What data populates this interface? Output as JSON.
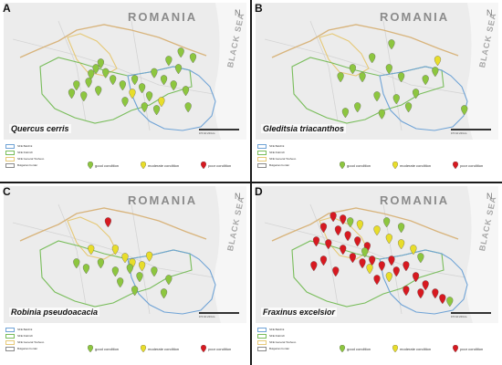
{
  "figure": {
    "country_label": "ROMANIA",
    "sea_label": "BLACK SEA",
    "north_symbol": "N",
    "scale_ticks": "0    5    10        20 km",
    "colors": {
      "map_bg": "#ececec",
      "border_bulgaria": "#b0b0b0",
      "border_romania": "#d8b47c",
      "sfe_balchik": "#6fa3d6",
      "sfe_dobrich": "#79bd5b",
      "sfe_general_toshevo": "#e6c978",
      "good": "#8dc63f",
      "moderate": "#e8dd2a",
      "poor": "#d71920"
    },
    "legend_areas": [
      {
        "label": "SFE Balchik",
        "color": "#6fa3d6"
      },
      {
        "label": "SFE Dobrich",
        "color": "#79bd5b"
      },
      {
        "label": "SFE General Toshevo",
        "color": "#e6c978"
      },
      {
        "label": "Bulgarian border",
        "color": "#8b8b8b"
      }
    ],
    "legend_conditions": [
      {
        "label": "good condition",
        "color": "#8dc63f"
      },
      {
        "label": "moderate condition",
        "color": "#e8dd2a"
      },
      {
        "label": "poor condition",
        "color": "#d71920"
      }
    ],
    "panels": [
      {
        "letter": "A",
        "species": "Quercus cerris",
        "points": [
          {
            "x": 0.38,
            "y": 0.52,
            "c": "good"
          },
          {
            "x": 0.4,
            "y": 0.48,
            "c": "good"
          },
          {
            "x": 0.36,
            "y": 0.56,
            "c": "good"
          },
          {
            "x": 0.42,
            "y": 0.55,
            "c": "good"
          },
          {
            "x": 0.35,
            "y": 0.62,
            "c": "good"
          },
          {
            "x": 0.3,
            "y": 0.64,
            "c": "good"
          },
          {
            "x": 0.28,
            "y": 0.7,
            "c": "good"
          },
          {
            "x": 0.33,
            "y": 0.72,
            "c": "good"
          },
          {
            "x": 0.39,
            "y": 0.68,
            "c": "good"
          },
          {
            "x": 0.45,
            "y": 0.6,
            "c": "good"
          },
          {
            "x": 0.49,
            "y": 0.64,
            "c": "good"
          },
          {
            "x": 0.54,
            "y": 0.6,
            "c": "good"
          },
          {
            "x": 0.57,
            "y": 0.66,
            "c": "good"
          },
          {
            "x": 0.6,
            "y": 0.72,
            "c": "good"
          },
          {
            "x": 0.58,
            "y": 0.8,
            "c": "good"
          },
          {
            "x": 0.63,
            "y": 0.82,
            "c": "good"
          },
          {
            "x": 0.62,
            "y": 0.55,
            "c": "good"
          },
          {
            "x": 0.66,
            "y": 0.6,
            "c": "good"
          },
          {
            "x": 0.7,
            "y": 0.64,
            "c": "good"
          },
          {
            "x": 0.75,
            "y": 0.68,
            "c": "good"
          },
          {
            "x": 0.72,
            "y": 0.52,
            "c": "good"
          },
          {
            "x": 0.68,
            "y": 0.46,
            "c": "good"
          },
          {
            "x": 0.73,
            "y": 0.4,
            "c": "good"
          },
          {
            "x": 0.78,
            "y": 0.44,
            "c": "good"
          },
          {
            "x": 0.76,
            "y": 0.8,
            "c": "good"
          },
          {
            "x": 0.5,
            "y": 0.76,
            "c": "good"
          },
          {
            "x": 0.53,
            "y": 0.7,
            "c": "moderate"
          },
          {
            "x": 0.65,
            "y": 0.76,
            "c": "moderate"
          }
        ]
      },
      {
        "letter": "B",
        "species": "Gleditsia triacanthos",
        "points": [
          {
            "x": 0.56,
            "y": 0.34,
            "c": "good"
          },
          {
            "x": 0.48,
            "y": 0.44,
            "c": "good"
          },
          {
            "x": 0.4,
            "y": 0.52,
            "c": "good"
          },
          {
            "x": 0.35,
            "y": 0.58,
            "c": "good"
          },
          {
            "x": 0.44,
            "y": 0.58,
            "c": "good"
          },
          {
            "x": 0.55,
            "y": 0.52,
            "c": "good"
          },
          {
            "x": 0.6,
            "y": 0.58,
            "c": "good"
          },
          {
            "x": 0.7,
            "y": 0.6,
            "c": "good"
          },
          {
            "x": 0.66,
            "y": 0.7,
            "c": "good"
          },
          {
            "x": 0.58,
            "y": 0.74,
            "c": "good"
          },
          {
            "x": 0.5,
            "y": 0.72,
            "c": "good"
          },
          {
            "x": 0.42,
            "y": 0.8,
            "c": "good"
          },
          {
            "x": 0.37,
            "y": 0.84,
            "c": "good"
          },
          {
            "x": 0.52,
            "y": 0.85,
            "c": "good"
          },
          {
            "x": 0.63,
            "y": 0.8,
            "c": "good"
          },
          {
            "x": 0.74,
            "y": 0.54,
            "c": "good"
          },
          {
            "x": 0.86,
            "y": 0.82,
            "c": "good"
          },
          {
            "x": 0.75,
            "y": 0.46,
            "c": "moderate"
          }
        ]
      },
      {
        "letter": "C",
        "species": "Robinia pseudoacacia",
        "points": [
          {
            "x": 0.43,
            "y": 0.3,
            "c": "poor"
          },
          {
            "x": 0.36,
            "y": 0.5,
            "c": "moderate"
          },
          {
            "x": 0.46,
            "y": 0.5,
            "c": "moderate"
          },
          {
            "x": 0.5,
            "y": 0.56,
            "c": "moderate"
          },
          {
            "x": 0.53,
            "y": 0.6,
            "c": "moderate"
          },
          {
            "x": 0.57,
            "y": 0.62,
            "c": "moderate"
          },
          {
            "x": 0.6,
            "y": 0.55,
            "c": "moderate"
          },
          {
            "x": 0.3,
            "y": 0.6,
            "c": "good"
          },
          {
            "x": 0.34,
            "y": 0.64,
            "c": "good"
          },
          {
            "x": 0.4,
            "y": 0.6,
            "c": "good"
          },
          {
            "x": 0.46,
            "y": 0.66,
            "c": "good"
          },
          {
            "x": 0.52,
            "y": 0.64,
            "c": "good"
          },
          {
            "x": 0.48,
            "y": 0.74,
            "c": "good"
          },
          {
            "x": 0.56,
            "y": 0.7,
            "c": "good"
          },
          {
            "x": 0.62,
            "y": 0.66,
            "c": "good"
          },
          {
            "x": 0.68,
            "y": 0.72,
            "c": "good"
          },
          {
            "x": 0.54,
            "y": 0.8,
            "c": "good"
          },
          {
            "x": 0.66,
            "y": 0.82,
            "c": "good"
          }
        ]
      },
      {
        "letter": "D",
        "species": "Fraxinus excelsior",
        "points": [
          {
            "x": 0.32,
            "y": 0.26,
            "c": "poor"
          },
          {
            "x": 0.36,
            "y": 0.28,
            "c": "poor"
          },
          {
            "x": 0.28,
            "y": 0.34,
            "c": "poor"
          },
          {
            "x": 0.34,
            "y": 0.36,
            "c": "poor"
          },
          {
            "x": 0.38,
            "y": 0.4,
            "c": "poor"
          },
          {
            "x": 0.25,
            "y": 0.44,
            "c": "poor"
          },
          {
            "x": 0.3,
            "y": 0.46,
            "c": "poor"
          },
          {
            "x": 0.36,
            "y": 0.5,
            "c": "poor"
          },
          {
            "x": 0.42,
            "y": 0.44,
            "c": "poor"
          },
          {
            "x": 0.46,
            "y": 0.48,
            "c": "poor"
          },
          {
            "x": 0.4,
            "y": 0.56,
            "c": "poor"
          },
          {
            "x": 0.44,
            "y": 0.6,
            "c": "poor"
          },
          {
            "x": 0.48,
            "y": 0.58,
            "c": "poor"
          },
          {
            "x": 0.52,
            "y": 0.62,
            "c": "poor"
          },
          {
            "x": 0.56,
            "y": 0.58,
            "c": "poor"
          },
          {
            "x": 0.58,
            "y": 0.66,
            "c": "poor"
          },
          {
            "x": 0.62,
            "y": 0.62,
            "c": "poor"
          },
          {
            "x": 0.5,
            "y": 0.72,
            "c": "poor"
          },
          {
            "x": 0.28,
            "y": 0.58,
            "c": "poor"
          },
          {
            "x": 0.24,
            "y": 0.62,
            "c": "poor"
          },
          {
            "x": 0.33,
            "y": 0.66,
            "c": "poor"
          },
          {
            "x": 0.66,
            "y": 0.7,
            "c": "poor"
          },
          {
            "x": 0.7,
            "y": 0.76,
            "c": "poor"
          },
          {
            "x": 0.74,
            "y": 0.82,
            "c": "poor"
          },
          {
            "x": 0.77,
            "y": 0.86,
            "c": "poor"
          },
          {
            "x": 0.68,
            "y": 0.82,
            "c": "poor"
          },
          {
            "x": 0.62,
            "y": 0.8,
            "c": "poor"
          },
          {
            "x": 0.43,
            "y": 0.32,
            "c": "moderate"
          },
          {
            "x": 0.5,
            "y": 0.36,
            "c": "moderate"
          },
          {
            "x": 0.55,
            "y": 0.42,
            "c": "moderate"
          },
          {
            "x": 0.6,
            "y": 0.46,
            "c": "moderate"
          },
          {
            "x": 0.65,
            "y": 0.5,
            "c": "moderate"
          },
          {
            "x": 0.47,
            "y": 0.64,
            "c": "moderate"
          },
          {
            "x": 0.55,
            "y": 0.7,
            "c": "moderate"
          },
          {
            "x": 0.39,
            "y": 0.3,
            "c": "good"
          },
          {
            "x": 0.54,
            "y": 0.3,
            "c": "good"
          },
          {
            "x": 0.6,
            "y": 0.34,
            "c": "good"
          },
          {
            "x": 0.68,
            "y": 0.56,
            "c": "good"
          },
          {
            "x": 0.8,
            "y": 0.88,
            "c": "good"
          },
          {
            "x": 0.45,
            "y": 0.52,
            "c": "good"
          }
        ]
      }
    ]
  }
}
